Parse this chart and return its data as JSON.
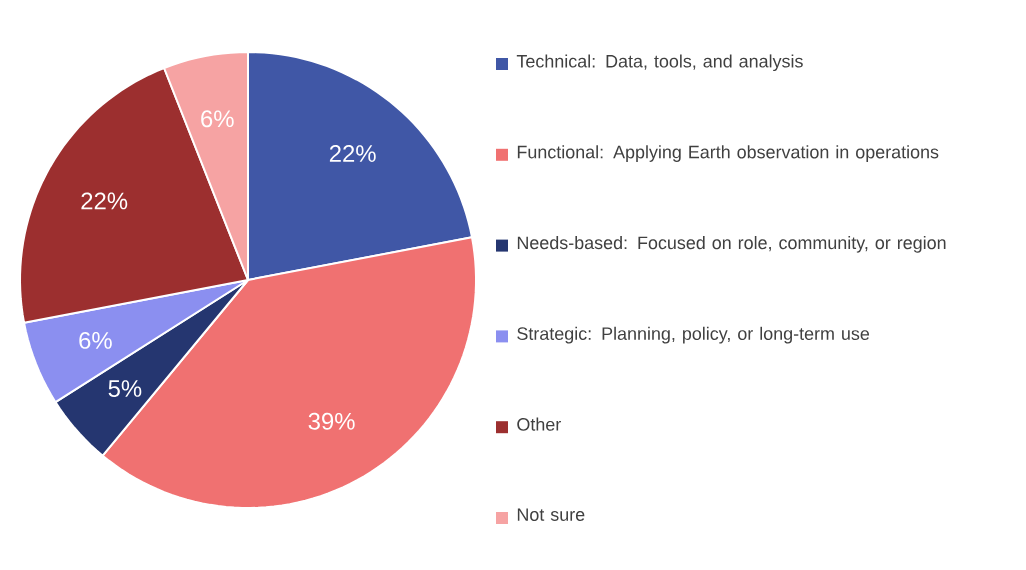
{
  "chart_data": {
    "type": "pie",
    "categories": [
      "Technical: Data, tools, and analysis",
      "Functional: Applying Earth observation in operations",
      "Needs-based: Focused on role, community, or region",
      "Strategic: Planning, policy, or long-term use",
      "Other",
      "Not sure"
    ],
    "values": [
      22,
      39,
      5,
      6,
      22,
      6
    ],
    "value_labels": [
      "22%",
      "39%",
      "5%",
      "6%",
      "22%",
      "6%"
    ],
    "colors": [
      "#4057a6",
      "#f07171",
      "#253670",
      "#8b8ff0",
      "#9c2f2f",
      "#f6a3a3"
    ],
    "legend": "right"
  }
}
